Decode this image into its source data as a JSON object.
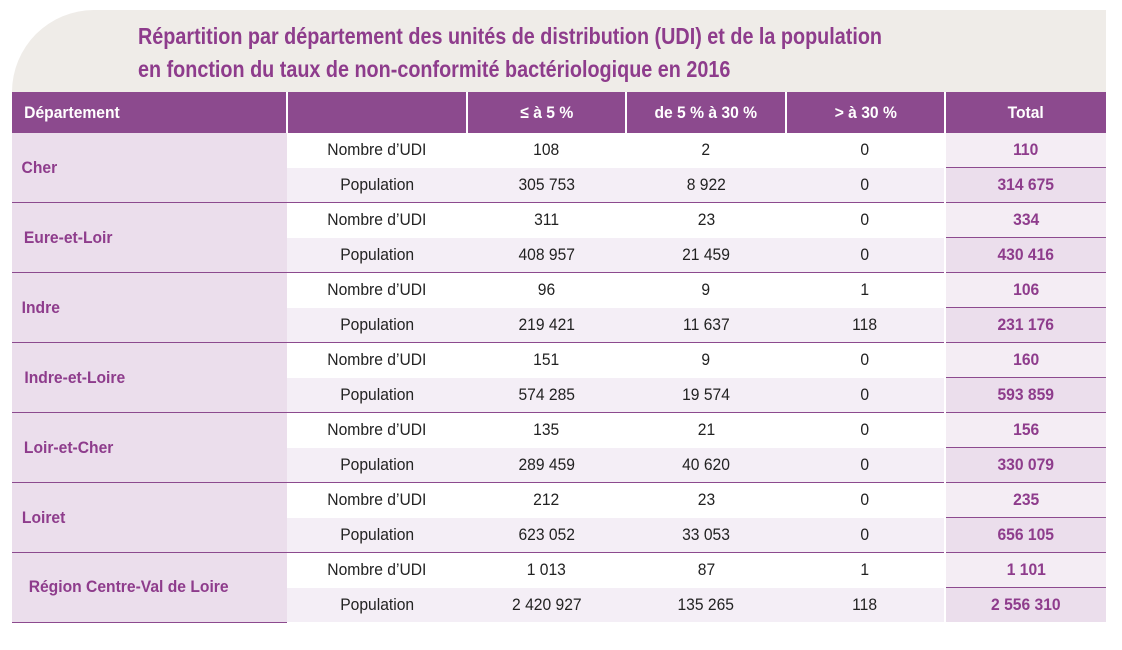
{
  "title": {
    "line1": "Répartition par département des unités de distribution (UDI) et de la population",
    "line2": "en fonction du taux de non-conformité bactériologique en 2016"
  },
  "headers": {
    "dept": "Département",
    "blank": "",
    "c1": "≤ à 5 %",
    "c2": "de 5 % à 30 %",
    "c3": "> à 30 %",
    "total": "Total"
  },
  "rowlabels": {
    "udi": "Nombre d’UDI",
    "pop": "Population"
  },
  "departments": [
    {
      "name": "Cher",
      "udi": [
        "108",
        "2",
        "0",
        "110"
      ],
      "pop": [
        "305 753",
        "8 922",
        "0",
        "314 675"
      ]
    },
    {
      "name": "Eure-et-Loir",
      "udi": [
        "311",
        "23",
        "0",
        "334"
      ],
      "pop": [
        "408 957",
        "21 459",
        "0",
        "430 416"
      ]
    },
    {
      "name": "Indre",
      "udi": [
        "96",
        "9",
        "1",
        "106"
      ],
      "pop": [
        "219 421",
        "11 637",
        "118",
        "231 176"
      ]
    },
    {
      "name": "Indre-et-Loire",
      "udi": [
        "151",
        "9",
        "0",
        "160"
      ],
      "pop": [
        "574 285",
        "19 574",
        "0",
        "593 859"
      ]
    },
    {
      "name": "Loir-et-Cher",
      "udi": [
        "135",
        "21",
        "0",
        "156"
      ],
      "pop": [
        "289 459",
        "40 620",
        "0",
        "330 079"
      ]
    },
    {
      "name": "Loiret",
      "udi": [
        "212",
        "23",
        "0",
        "235"
      ],
      "pop": [
        "623 052",
        "33 053",
        "0",
        "656 105"
      ]
    },
    {
      "name": "Région Centre-Val de Loire",
      "udi": [
        "1 013",
        "87",
        "1",
        "1 101"
      ],
      "pop": [
        "2 420 927",
        "135 265",
        "118",
        "2 556 310"
      ]
    }
  ]
}
